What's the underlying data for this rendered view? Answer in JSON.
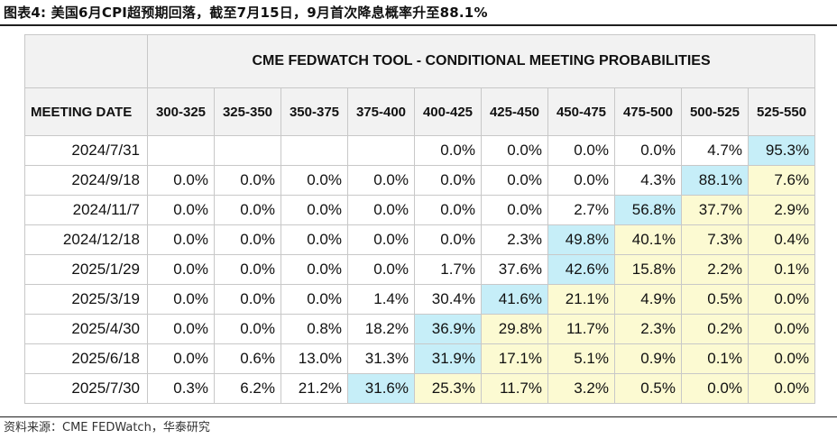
{
  "figure": {
    "title": "图表4:  美国6月CPI超预期回落，截至7月15日，9月首次降息概率升至88.1%",
    "source": "资料来源：CME FEDWatch，华泰研究"
  },
  "table": {
    "banner": "CME FEDWATCH TOOL - CONDITIONAL MEETING PROBABILITIES",
    "date_header": "MEETING DATE",
    "columns": [
      "300-325",
      "325-350",
      "350-375",
      "375-400",
      "400-425",
      "425-450",
      "450-475",
      "475-500",
      "500-525",
      "525-550"
    ],
    "rows": [
      {
        "date": "2024/7/31",
        "cells": [
          "",
          "",
          "",
          "",
          "0.0%",
          "0.0%",
          "0.0%",
          "0.0%",
          "4.7%",
          "95.3%"
        ]
      },
      {
        "date": "2024/9/18",
        "cells": [
          "0.0%",
          "0.0%",
          "0.0%",
          "0.0%",
          "0.0%",
          "0.0%",
          "0.0%",
          "4.3%",
          "88.1%",
          "7.6%"
        ]
      },
      {
        "date": "2024/11/7",
        "cells": [
          "0.0%",
          "0.0%",
          "0.0%",
          "0.0%",
          "0.0%",
          "0.0%",
          "2.7%",
          "56.8%",
          "37.7%",
          "2.9%"
        ]
      },
      {
        "date": "2024/12/18",
        "cells": [
          "0.0%",
          "0.0%",
          "0.0%",
          "0.0%",
          "0.0%",
          "2.3%",
          "49.8%",
          "40.1%",
          "7.3%",
          "0.4%"
        ]
      },
      {
        "date": "2025/1/29",
        "cells": [
          "0.0%",
          "0.0%",
          "0.0%",
          "0.0%",
          "1.7%",
          "37.6%",
          "42.6%",
          "15.8%",
          "2.2%",
          "0.1%"
        ]
      },
      {
        "date": "2025/3/19",
        "cells": [
          "0.0%",
          "0.0%",
          "0.0%",
          "1.4%",
          "30.4%",
          "41.6%",
          "21.1%",
          "4.9%",
          "0.5%",
          "0.0%"
        ]
      },
      {
        "date": "2025/4/30",
        "cells": [
          "0.0%",
          "0.0%",
          "0.8%",
          "18.2%",
          "36.9%",
          "29.8%",
          "11.7%",
          "2.3%",
          "0.2%",
          "0.0%"
        ]
      },
      {
        "date": "2025/6/18",
        "cells": [
          "0.0%",
          "0.6%",
          "13.0%",
          "31.3%",
          "31.9%",
          "17.1%",
          "5.1%",
          "0.9%",
          "0.1%",
          "0.0%"
        ]
      },
      {
        "date": "2025/7/30",
        "cells": [
          "0.3%",
          "6.2%",
          "21.2%",
          "31.6%",
          "25.3%",
          "11.7%",
          "3.2%",
          "0.5%",
          "0.0%",
          "0.0%"
        ]
      }
    ],
    "highlight_cols": [
      9,
      8,
      7,
      6,
      6,
      5,
      4,
      4,
      3
    ],
    "colors": {
      "highlight": "#c6eef8",
      "right_of_highlight": "#fcfad2",
      "header_bg": "#f2f2f2",
      "grid": "#c8c8c8"
    }
  }
}
